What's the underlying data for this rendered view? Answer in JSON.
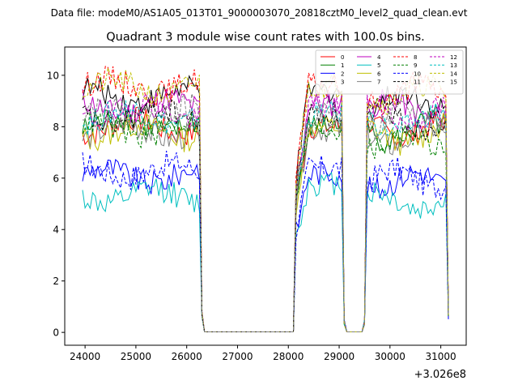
{
  "figure": {
    "suptitle": "Data file: modeM0/AS1A05_013T01_9000003070_20818cztM0_level2_quad_clean.evt"
  },
  "chart_data": {
    "type": "line",
    "title": "Quadrant 3 module wise count rates with 100.0s bins.",
    "xlabel": "",
    "ylabel": "",
    "x_offset_label": "+3.026e8",
    "xlim": [
      23600,
      31500
    ],
    "ylim": [
      -0.5,
      11.1
    ],
    "x_ticks": [
      24000,
      25000,
      26000,
      27000,
      28000,
      29000,
      30000,
      31000
    ],
    "x_tick_labels": [
      "24000",
      "25000",
      "26000",
      "27000",
      "28000",
      "29000",
      "30000",
      "31000"
    ],
    "y_ticks": [
      0,
      2,
      4,
      6,
      8,
      10
    ],
    "y_tick_labels": [
      "0",
      "2",
      "4",
      "6",
      "8",
      "10"
    ],
    "grid": false,
    "legend_position": "top-right",
    "legend_columns": 4,
    "segments": [
      {
        "x_start": 23950,
        "x_end": 26250
      },
      {
        "x_start": 28150,
        "x_end": 29050
      },
      {
        "x_start": 29550,
        "x_end": 31100
      }
    ],
    "gap_points": [
      26300,
      26350,
      28100,
      29100,
      29150,
      29450,
      29500,
      31150
    ],
    "series": [
      {
        "name": "0",
        "color": "#ff0000",
        "dash": false,
        "base": [
          8.0,
          8.0,
          7.9
        ]
      },
      {
        "name": "1",
        "color": "#008000",
        "dash": false,
        "base": [
          8.1,
          8.0,
          7.8
        ]
      },
      {
        "name": "2",
        "color": "#0000ff",
        "dash": false,
        "base": [
          6.1,
          6.2,
          5.9
        ]
      },
      {
        "name": "3",
        "color": "#000000",
        "dash": false,
        "base": [
          9.2,
          9.4,
          9.0
        ]
      },
      {
        "name": "4",
        "color": "#bf00bf",
        "dash": false,
        "base": [
          8.8,
          8.9,
          8.7
        ]
      },
      {
        "name": "5",
        "color": "#00bfbf",
        "dash": false,
        "base": [
          5.3,
          5.8,
          5.1
        ]
      },
      {
        "name": "6",
        "color": "#bfbf00",
        "dash": false,
        "base": [
          7.8,
          8.0,
          7.7
        ]
      },
      {
        "name": "7",
        "color": "#808080",
        "dash": false,
        "base": [
          7.8,
          7.9,
          7.6
        ]
      },
      {
        "name": "8",
        "color": "#ff0000",
        "dash": true,
        "base": [
          9.6,
          9.6,
          9.3
        ]
      },
      {
        "name": "9",
        "color": "#008000",
        "dash": true,
        "base": [
          7.9,
          7.9,
          7.4
        ]
      },
      {
        "name": "10",
        "color": "#0000ff",
        "dash": true,
        "base": [
          6.3,
          6.4,
          6.0
        ]
      },
      {
        "name": "11",
        "color": "#000000",
        "dash": true,
        "base": [
          8.4,
          8.5,
          8.3
        ]
      },
      {
        "name": "12",
        "color": "#bf00bf",
        "dash": true,
        "base": [
          8.6,
          8.8,
          8.5
        ]
      },
      {
        "name": "13",
        "color": "#00bfbf",
        "dash": true,
        "base": [
          8.4,
          8.5,
          8.2
        ]
      },
      {
        "name": "14",
        "color": "#bfbf00",
        "dash": true,
        "base": [
          9.5,
          9.6,
          9.3
        ]
      },
      {
        "name": "15",
        "color": "#808080",
        "dash": true,
        "base": [
          8.5,
          8.5,
          8.3
        ]
      }
    ]
  }
}
